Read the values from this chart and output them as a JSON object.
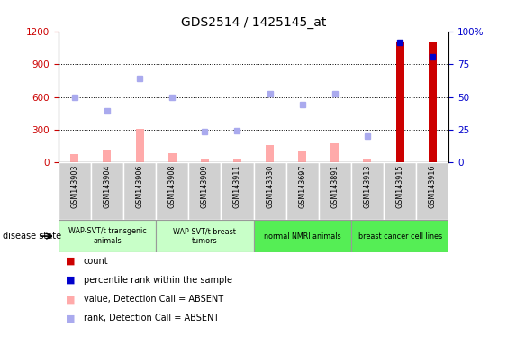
{
  "title": "GDS2514 / 1425145_at",
  "samples": [
    "GSM143903",
    "GSM143904",
    "GSM143906",
    "GSM143908",
    "GSM143909",
    "GSM143911",
    "GSM143330",
    "GSM143697",
    "GSM143891",
    "GSM143913",
    "GSM143915",
    "GSM143916"
  ],
  "count_absent": [
    true,
    true,
    true,
    true,
    true,
    true,
    true,
    true,
    true,
    true,
    false,
    false
  ],
  "value_absent": [
    75,
    120,
    310,
    90,
    30,
    40,
    160,
    100,
    180,
    30,
    0,
    0
  ],
  "rank_absent": [
    600,
    470,
    770,
    600,
    285,
    295,
    630,
    530,
    625,
    240,
    0,
    0
  ],
  "count_present": [
    0,
    0,
    0,
    0,
    0,
    0,
    0,
    0,
    0,
    0,
    1100,
    1100
  ],
  "rank_present": [
    0,
    0,
    0,
    0,
    0,
    0,
    0,
    0,
    0,
    0,
    1100,
    970
  ],
  "groups": [
    {
      "label": "WAP-SVT/t transgenic\nanimals",
      "start": 0,
      "end": 3,
      "color": "#c8ffc8"
    },
    {
      "label": "WAP-SVT/t breast\ntumors",
      "start": 3,
      "end": 6,
      "color": "#c8ffc8"
    },
    {
      "label": "normal NMRI animals",
      "start": 6,
      "end": 9,
      "color": "#55ee55"
    },
    {
      "label": "breast cancer cell lines",
      "start": 9,
      "end": 12,
      "color": "#55ee55"
    }
  ],
  "ylim_left": [
    0,
    1200
  ],
  "ylim_right": [
    0,
    100
  ],
  "yticks_left": [
    0,
    300,
    600,
    900,
    1200
  ],
  "yticks_right": [
    0,
    25,
    50,
    75,
    100
  ],
  "left_color": "#cc0000",
  "right_color": "#0000cc",
  "bar_color_absent": "#ffaaaa",
  "bar_color_present": "#cc0000",
  "marker_color_absent": "#aaaaee",
  "marker_color_present": "#0000cc",
  "disease_state_label": "disease state",
  "legend_items": [
    {
      "color": "#cc0000",
      "label": "count"
    },
    {
      "color": "#0000cc",
      "label": "percentile rank within the sample"
    },
    {
      "color": "#ffaaaa",
      "label": "value, Detection Call = ABSENT"
    },
    {
      "color": "#aaaaee",
      "label": "rank, Detection Call = ABSENT"
    }
  ]
}
